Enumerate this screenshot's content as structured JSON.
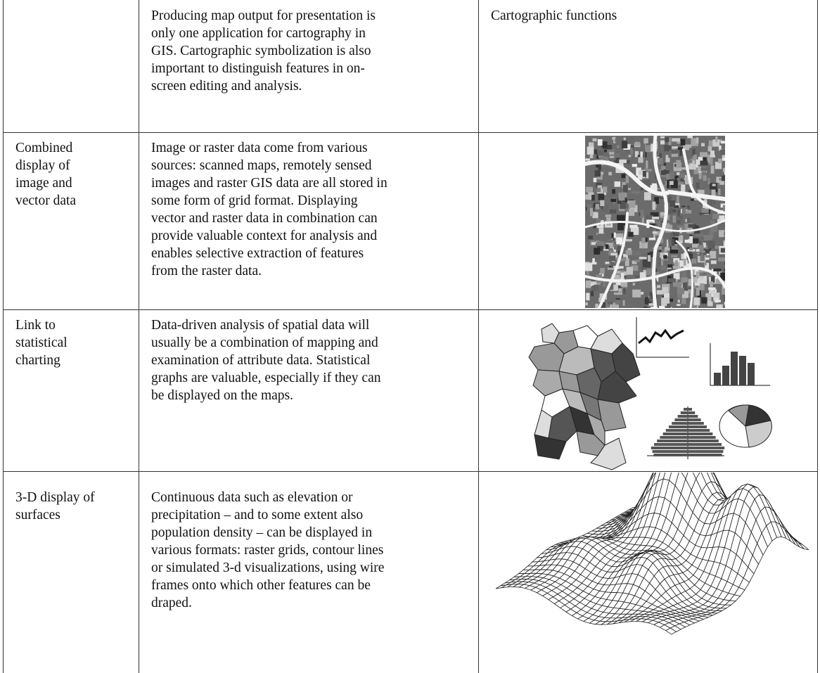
{
  "table": {
    "rows": [
      [
        [],
        [
          "Producing map output for presentation is",
          "only one application for cartography in",
          "GIS. Cartographic symbolization is also",
          "important to distinguish features in on-",
          "screen editing and analysis."
        ],
        [
          "Cartographic functions"
        ]
      ],
      [
        [
          "Combined",
          "display of",
          "image and",
          "vector data"
        ],
        [
          "Image or raster data come from various",
          "sources: scanned maps, remotely sensed",
          "images and raster GIS data are all stored in",
          "some form of grid format. Displaying",
          "vector and raster data in combination can",
          "provide valuable context for analysis and",
          "enables selective extraction of features",
          "from the raster data."
        ]
      ],
      [
        [
          "Link to",
          "statistical",
          "charting"
        ],
        [
          "Data-driven analysis of spatial data will",
          "usually be a combination of mapping and",
          "examination of attribute data. Statistical",
          "graphs are valuable, especially if they can",
          "be displayed on the maps."
        ]
      ],
      [
        [
          "3-D display of",
          "surfaces"
        ],
        [
          "Continuous data such as elevation or",
          "precipitation – and to some extent also",
          "population density – can be displayed in",
          "various formats: raster grids, contour lines",
          "or simulated 3-d visualizations, using wire",
          "frames onto which other features can be",
          "draped."
        ]
      ]
    ]
  }
}
